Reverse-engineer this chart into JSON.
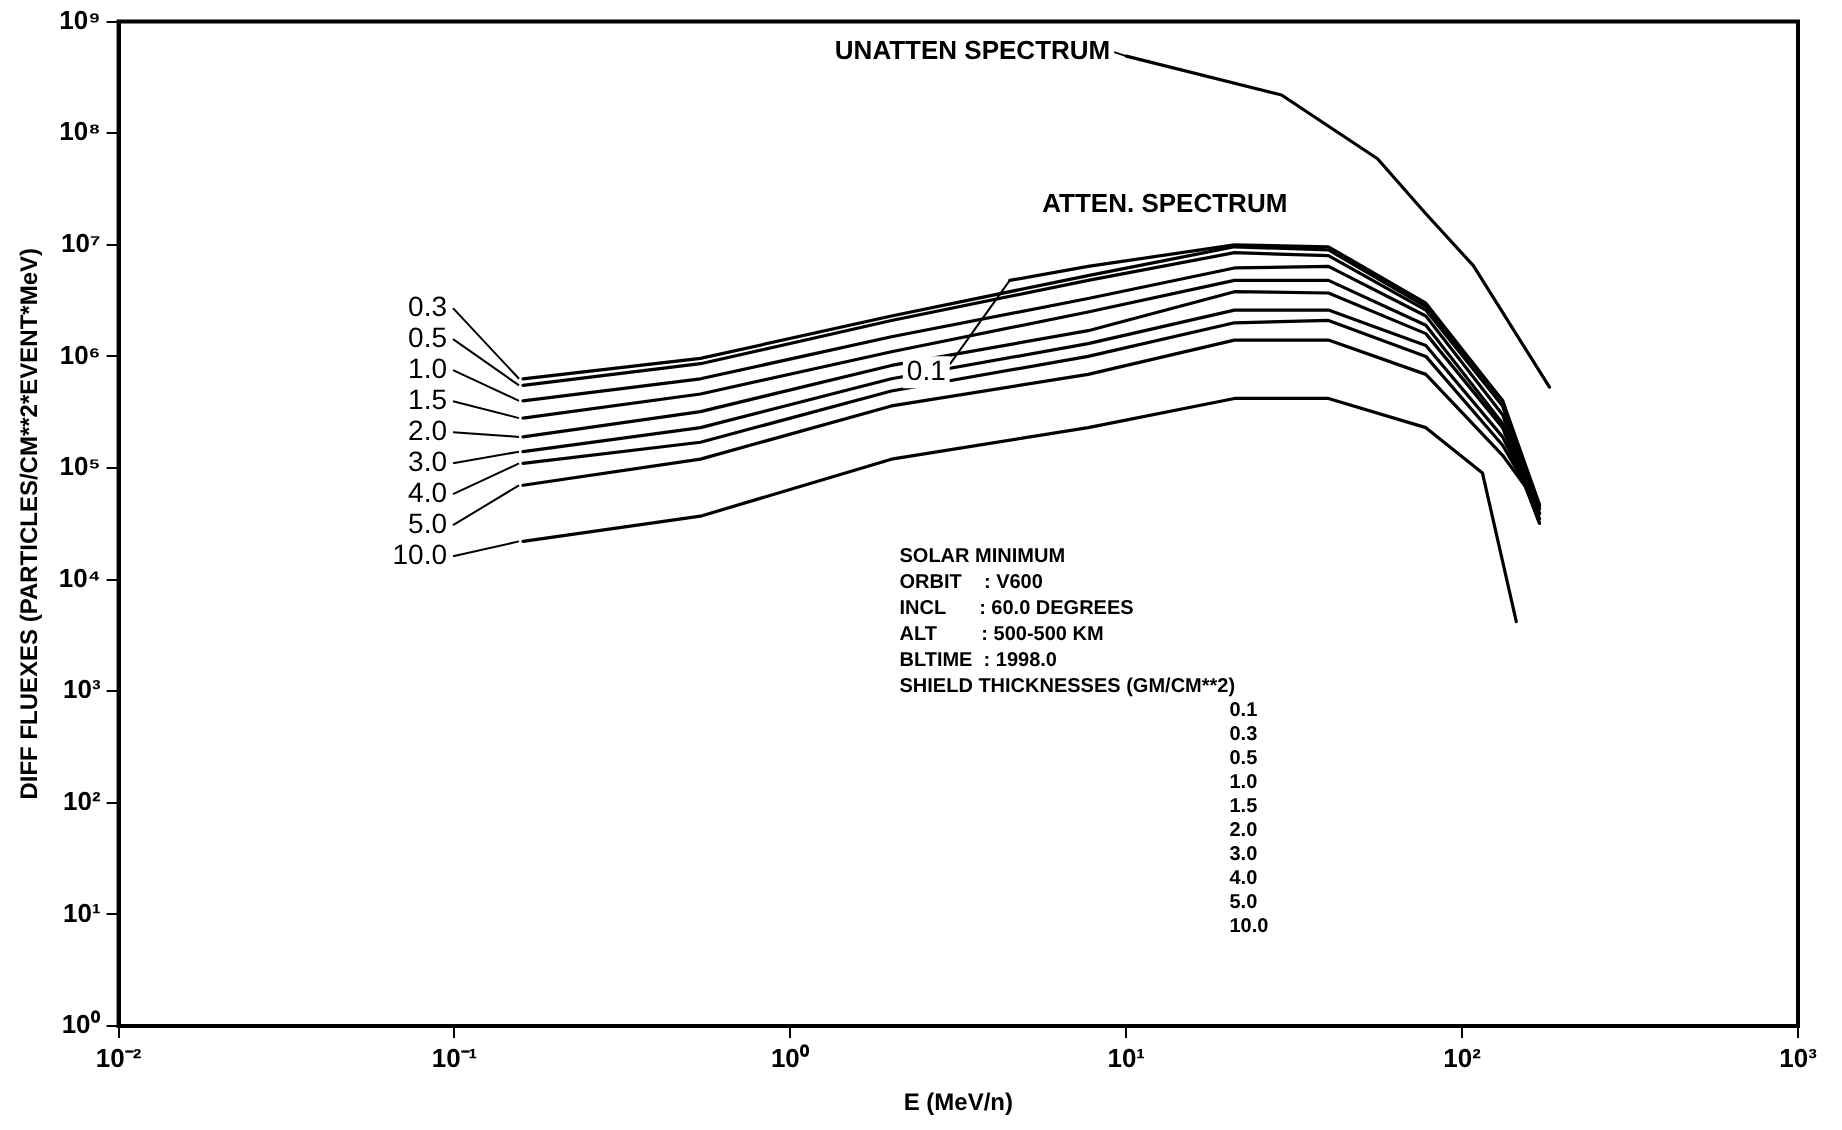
{
  "chart_data": {
    "type": "line",
    "xlabel": "E (MeV/n)",
    "ylabel": "DIFF FLUEXES (PARTICLES/CM**2*EVENT*MeV)",
    "log": "xy",
    "grid": false,
    "legend": "left",
    "marker": "none",
    "line_style": "solid",
    "xlim": [
      0.01,
      1000
    ],
    "ylim": [
      1,
      1000000000
    ],
    "xticks": [
      {
        "value": 0.01,
        "label": "10⁻²"
      },
      {
        "value": 0.1,
        "label": "10⁻¹"
      },
      {
        "value": 1,
        "label": "10⁰"
      },
      {
        "value": 10,
        "label": "10¹"
      },
      {
        "value": 100,
        "label": "10²"
      },
      {
        "value": 1000,
        "label": "10³"
      }
    ],
    "yticks": [
      {
        "value": 1,
        "label": "10⁰"
      },
      {
        "value": 10,
        "label": "10¹"
      },
      {
        "value": 100,
        "label": "10²"
      },
      {
        "value": 1000,
        "label": "10³"
      },
      {
        "value": 10000,
        "label": "10⁴"
      },
      {
        "value": 100000,
        "label": "10⁵"
      },
      {
        "value": 1000000,
        "label": "10⁶"
      },
      {
        "value": 10000000,
        "label": "10⁷"
      },
      {
        "value": 100000000,
        "label": "10⁸"
      },
      {
        "value": 1000000000,
        "label": "10⁹"
      }
    ],
    "x": [
      0.16,
      0.54,
      2,
      7.7,
      21,
      40,
      78,
      132,
      170
    ],
    "series": [
      {
        "name": "UNATTEN SPECTRUM",
        "color": "#000000",
        "x": [
          10,
          29,
          56,
          78,
          108,
          182
        ],
        "values": [
          490000000,
          220000000,
          59000000,
          19000000,
          6500000,
          530000
        ]
      },
      {
        "name": "0.1",
        "color": "#000000",
        "x": [
          4.5,
          7.7,
          21,
          40,
          78,
          132,
          170
        ],
        "values": [
          4800000,
          6400000,
          10000000,
          9600000,
          3000000,
          400000,
          47000
        ]
      },
      {
        "name": "0.3",
        "color": "#000000",
        "values": [
          630000,
          960000,
          2300000,
          5300000,
          9600000,
          9000000,
          2800000,
          400000,
          43000
        ]
      },
      {
        "name": "0.5",
        "color": "#000000",
        "values": [
          550000,
          860000,
          2100000,
          4800000,
          8500000,
          8000000,
          2600000,
          360000,
          39000
        ]
      },
      {
        "name": "1.0",
        "color": "#000000",
        "values": [
          400000,
          630000,
          1500000,
          3300000,
          6200000,
          6400000,
          2300000,
          300000,
          35000
        ]
      },
      {
        "name": "1.5",
        "color": "#000000",
        "values": [
          280000,
          460000,
          1100000,
          2500000,
          4800000,
          4800000,
          1900000,
          250000,
          32000
        ]
      },
      {
        "name": "2.0",
        "color": "#000000",
        "values": [
          190000,
          320000,
          830000,
          1700000,
          3800000,
          3700000,
          1600000,
          230000,
          32000
        ]
      },
      {
        "name": "3.0",
        "color": "#000000",
        "values": [
          140000,
          230000,
          630000,
          1300000,
          2600000,
          2600000,
          1250000,
          190000,
          39000
        ]
      },
      {
        "name": "4.0",
        "color": "#000000",
        "values": [
          110000,
          170000,
          490000,
          1000000,
          2000000,
          2100000,
          1000000,
          160000,
          43000
        ]
      },
      {
        "name": "5.0",
        "color": "#000000",
        "values": [
          70000,
          120000,
          360000,
          690000,
          1400000,
          1400000,
          690000,
          130000,
          46000
        ]
      },
      {
        "name": "10.0",
        "color": "#000000",
        "x": [
          0.16,
          0.54,
          2,
          7.7,
          21,
          40,
          78,
          115,
          145
        ],
        "values": [
          22000,
          37000,
          120000,
          230000,
          420000,
          420000,
          230000,
          90000,
          4200
        ]
      }
    ],
    "annotations": [
      "ATTEN. SPECTRUM",
      "SOLAR MINIMUM",
      "ORBIT    : V600",
      "INCL      : 60.0 DEGREES",
      "ALT        : 500-500 KM",
      "BLTIME  : 1998.0",
      "SHIELD THICKNESSES (GM/CM**2)",
      "0.1",
      "0.3",
      "0.5",
      "1.0",
      "1.5",
      "2.0",
      "3.0",
      "4.0",
      "5.0",
      "10.0"
    ]
  }
}
